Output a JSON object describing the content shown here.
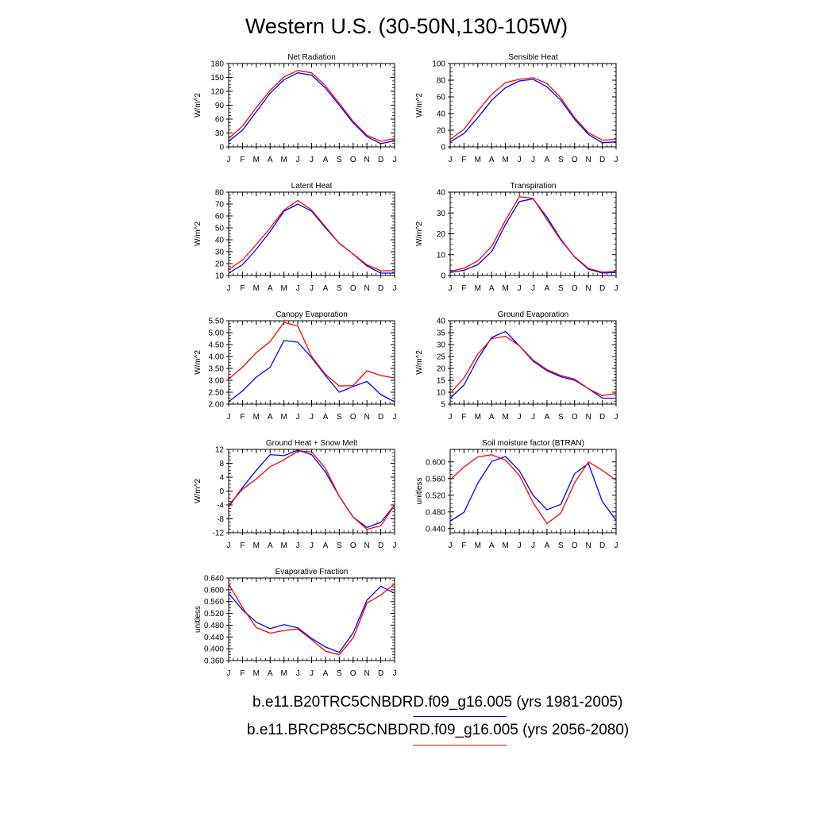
{
  "title": "Western U.S. (30-50N,130-105W)",
  "colors": {
    "series_1": "#0000ff",
    "series_2": "#ff0000",
    "axis": "#000000"
  },
  "legend": [
    {
      "label": "b.e11.B20TRC5CNBDRD.f09_g16.005 (yrs 1981-2005)",
      "color": "#0000ff"
    },
    {
      "label": "b.e11.BRCP85C5CNBDRD.f09_g16.005 (yrs 2056-2080)",
      "color": "#ff0000"
    }
  ],
  "chart_data": [
    {
      "type": "line",
      "title": "Net Radiation",
      "ylabel": "W/m^2",
      "categories": [
        "J",
        "F",
        "M",
        "A",
        "M",
        "J",
        "J",
        "A",
        "S",
        "O",
        "N",
        "D",
        "J"
      ],
      "ylim": [
        0,
        180
      ],
      "yticks": [
        "0",
        "30",
        "60",
        "90",
        "120",
        "150",
        "180"
      ],
      "series": [
        {
          "values": [
            12,
            36,
            76,
            116,
            145,
            160,
            155,
            127,
            90,
            52,
            22,
            7,
            13
          ]
        },
        {
          "values": [
            18,
            45,
            85,
            122,
            151,
            165,
            160,
            132,
            94,
            55,
            25,
            12,
            18
          ]
        }
      ]
    },
    {
      "type": "line",
      "title": "Sensible Heat",
      "ylabel": "W/m^2",
      "categories": [
        "J",
        "F",
        "M",
        "A",
        "M",
        "J",
        "J",
        "A",
        "S",
        "O",
        "N",
        "D",
        "J"
      ],
      "ylim": [
        0,
        100
      ],
      "yticks": [
        "0",
        "20",
        "40",
        "60",
        "80",
        "100"
      ],
      "series": [
        {
          "values": [
            6,
            16,
            35,
            56,
            71,
            79,
            81,
            72,
            56,
            33,
            15,
            5,
            6
          ]
        },
        {
          "values": [
            9,
            21,
            43,
            63,
            77,
            81,
            83,
            76,
            59,
            35,
            17,
            8,
            9
          ]
        }
      ]
    },
    {
      "type": "line",
      "title": "Latent Heat",
      "ylabel": "W/m^2",
      "categories": [
        "J",
        "F",
        "M",
        "A",
        "M",
        "J",
        "J",
        "A",
        "S",
        "O",
        "N",
        "D",
        "J"
      ],
      "ylim": [
        10,
        80
      ],
      "yticks": [
        "10",
        "20",
        "30",
        "40",
        "50",
        "60",
        "70",
        "80"
      ],
      "series": [
        {
          "values": [
            12,
            19,
            32,
            47,
            64,
            70,
            64,
            50,
            37,
            28,
            18,
            12,
            12
          ]
        },
        {
          "values": [
            15,
            23,
            36,
            50,
            65,
            73,
            65,
            51,
            37,
            28,
            19,
            14,
            14
          ]
        }
      ]
    },
    {
      "type": "line",
      "title": "Transpiration",
      "ylabel": "W/m^2",
      "categories": [
        "J",
        "F",
        "M",
        "A",
        "M",
        "J",
        "J",
        "A",
        "S",
        "O",
        "N",
        "D",
        "J"
      ],
      "ylim": [
        0,
        40
      ],
      "yticks": [
        "0",
        "10",
        "20",
        "30",
        "40"
      ],
      "series": [
        {
          "values": [
            1.5,
            2.5,
            5.2,
            11.5,
            24.5,
            35.5,
            36.8,
            28.0,
            17.5,
            8.8,
            3.0,
            1.2,
            1.5
          ]
        },
        {
          "values": [
            2.0,
            3.5,
            7.0,
            14.0,
            26.5,
            37.8,
            37.0,
            26.8,
            17.0,
            9.0,
            3.4,
            1.6,
            2.0
          ]
        }
      ]
    },
    {
      "type": "line",
      "title": "Canopy Evaporation",
      "ylabel": "W/m^2",
      "categories": [
        "J",
        "F",
        "M",
        "A",
        "M",
        "J",
        "J",
        "A",
        "S",
        "O",
        "N",
        "D",
        "J"
      ],
      "ylim": [
        2.0,
        5.5
      ],
      "yticks": [
        "2.00",
        "2.50",
        "3.00",
        "3.50",
        "4.00",
        "4.50",
        "5.00",
        "5.50"
      ],
      "series": [
        {
          "values": [
            2.1,
            2.55,
            3.13,
            3.55,
            4.67,
            4.6,
            3.95,
            3.2,
            2.5,
            2.74,
            2.95,
            2.4,
            2.1
          ]
        },
        {
          "values": [
            3.05,
            3.55,
            4.16,
            4.63,
            5.43,
            5.28,
            4.0,
            3.25,
            2.76,
            2.78,
            3.4,
            3.2,
            3.1
          ]
        }
      ]
    },
    {
      "type": "line",
      "title": "Ground Evaporation",
      "ylabel": "W/m^2",
      "categories": [
        "J",
        "F",
        "M",
        "A",
        "M",
        "J",
        "J",
        "A",
        "S",
        "O",
        "N",
        "D",
        "J"
      ],
      "ylim": [
        5,
        40
      ],
      "yticks": [
        "5",
        "10",
        "15",
        "20",
        "25",
        "30",
        "35",
        "40"
      ],
      "series": [
        {
          "values": [
            7.5,
            13,
            24,
            33,
            35.5,
            29.5,
            23,
            19,
            16.5,
            15,
            11.5,
            7.5,
            7.5
          ]
        },
        {
          "values": [
            9.5,
            16,
            26,
            32.5,
            33.5,
            29.5,
            23.5,
            19.5,
            17,
            15.5,
            11.5,
            8.5,
            9.5
          ]
        }
      ]
    },
    {
      "type": "line",
      "title": "Ground Heat + Snow Melt",
      "ylabel": "W/m^2",
      "categories": [
        "J",
        "F",
        "M",
        "A",
        "M",
        "J",
        "J",
        "A",
        "S",
        "O",
        "N",
        "D",
        "J"
      ],
      "ylim": [
        -12,
        12
      ],
      "yticks": [
        "-12",
        "-8",
        "-4",
        "0",
        "4",
        "8",
        "12"
      ],
      "series": [
        {
          "values": [
            -4.5,
            1.0,
            6.0,
            10.5,
            10.2,
            11.8,
            10.5,
            5.5,
            -1.5,
            -7.5,
            -10.5,
            -9.0,
            -4.0
          ]
        },
        {
          "values": [
            -4.0,
            0.5,
            3.5,
            7.0,
            9.0,
            11.5,
            11.3,
            6.5,
            -1.5,
            -7.5,
            -11.0,
            -10.0,
            -4.0
          ]
        }
      ]
    },
    {
      "type": "line",
      "title": "Soil moisture factor (BTRAN)",
      "ylabel": "unitless",
      "categories": [
        "J",
        "F",
        "M",
        "A",
        "M",
        "J",
        "J",
        "A",
        "S",
        "O",
        "N",
        "D",
        "J"
      ],
      "ylim": [
        0.43,
        0.63
      ],
      "yticks": [
        "0.440",
        "0.480",
        "0.520",
        "0.560",
        "0.600"
      ],
      "series": [
        {
          "values": [
            0.458,
            0.479,
            0.549,
            0.601,
            0.613,
            0.579,
            0.52,
            0.485,
            0.498,
            0.572,
            0.596,
            0.505,
            0.46
          ]
        },
        {
          "values": [
            0.557,
            0.588,
            0.612,
            0.617,
            0.604,
            0.568,
            0.502,
            0.452,
            0.477,
            0.55,
            0.6,
            0.58,
            0.556
          ]
        }
      ]
    },
    {
      "type": "line",
      "title": "Evaporative Fraction",
      "ylabel": "unitless",
      "categories": [
        "J",
        "F",
        "M",
        "A",
        "M",
        "J",
        "J",
        "A",
        "S",
        "O",
        "N",
        "D",
        "J"
      ],
      "ylim": [
        0.36,
        0.64
      ],
      "yticks": [
        "0.360",
        "0.400",
        "0.440",
        "0.480",
        "0.520",
        "0.560",
        "0.600",
        "0.640"
      ],
      "series": [
        {
          "values": [
            0.588,
            0.532,
            0.49,
            0.468,
            0.482,
            0.471,
            0.435,
            0.406,
            0.388,
            0.454,
            0.565,
            0.612,
            0.588
          ]
        },
        {
          "values": [
            0.62,
            0.54,
            0.472,
            0.453,
            0.462,
            0.467,
            0.431,
            0.392,
            0.38,
            0.437,
            0.555,
            0.582,
            0.62
          ]
        }
      ]
    }
  ]
}
